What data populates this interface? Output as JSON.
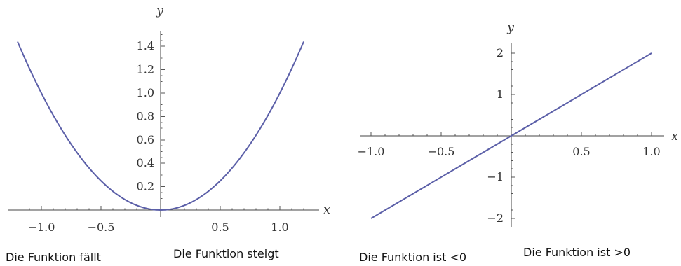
{
  "chart_data": [
    {
      "type": "line",
      "function": "y = x^2",
      "xlabel": "x",
      "ylabel": "y",
      "xlim": [
        -1.2,
        1.2
      ],
      "ylim": [
        0,
        1.44
      ],
      "x_ticks": [
        -1.0,
        -0.5,
        0.5,
        1.0
      ],
      "x_tick_labels": [
        "−1.0",
        "−0.5",
        "0.5",
        "1.0"
      ],
      "y_ticks": [
        0.2,
        0.4,
        0.6,
        0.8,
        1.0,
        1.2,
        1.4
      ],
      "y_tick_labels": [
        "0.2",
        "0.4",
        "0.6",
        "0.8",
        "1.0",
        "1.2",
        "1.4"
      ],
      "series": [
        {
          "color": "#5b5fa8",
          "x": [
            -1.2,
            -1.0,
            -0.8,
            -0.6,
            -0.4,
            -0.2,
            0.0,
            0.2,
            0.4,
            0.6,
            0.8,
            1.0,
            1.2
          ],
          "y": [
            1.44,
            1.0,
            0.64,
            0.36,
            0.16,
            0.04,
            0.0,
            0.04,
            0.16,
            0.36,
            0.64,
            1.0,
            1.44
          ]
        }
      ],
      "captions": [
        "Die Funktion fällt",
        "Die Funktion steigt"
      ],
      "grid": false
    },
    {
      "type": "line",
      "function": "y = 2x",
      "xlabel": "x",
      "ylabel": "y",
      "xlim": [
        -1.0,
        1.0
      ],
      "ylim": [
        -2.0,
        2.0
      ],
      "x_ticks": [
        -1.0,
        -0.5,
        0.5,
        1.0
      ],
      "x_tick_labels": [
        "−1.0",
        "−0.5",
        "0.5",
        "1.0"
      ],
      "y_ticks": [
        -2,
        -1,
        1,
        2
      ],
      "y_tick_labels": [
        "−2",
        "−1",
        "1",
        "2"
      ],
      "series": [
        {
          "color": "#5b5fa8",
          "x": [
            -1.0,
            1.0
          ],
          "y": [
            -2.0,
            2.0
          ]
        }
      ],
      "captions": [
        "Die Funktion ist <0",
        "Die Funktion ist >0"
      ],
      "grid": false
    }
  ]
}
